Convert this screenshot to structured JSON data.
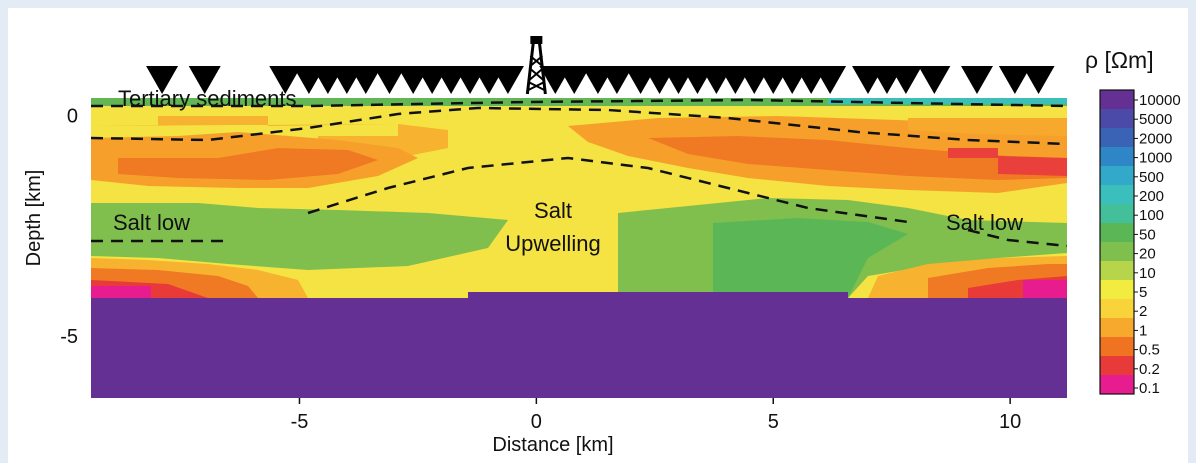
{
  "figure": {
    "x_axis": {
      "label": "Distance [km]",
      "ticks": [
        {
          "value": -5,
          "label": "-5"
        },
        {
          "value": 0,
          "label": "0"
        },
        {
          "value": 5,
          "label": "5"
        },
        {
          "value": 10,
          "label": "10"
        }
      ],
      "range_km": [
        -9.4,
        11.2
      ]
    },
    "y_axis": {
      "label": "Depth [km]",
      "ticks": [
        {
          "value": 0,
          "label": "0"
        },
        {
          "value": -5,
          "label": "-5"
        }
      ],
      "range_km": [
        0.4,
        -6.4
      ]
    },
    "colorbar": {
      "title": "ρ [Ωm]",
      "scale": "log",
      "labels": [
        "10000",
        "5000",
        "2000",
        "1000",
        "500",
        "200",
        "100",
        "50",
        "20",
        "10",
        "5",
        "2",
        "1",
        "0.5",
        "0.2",
        "0.1"
      ],
      "colors": [
        "#653093",
        "#4c4aa8",
        "#3a62b5",
        "#2f86c6",
        "#33a9c9",
        "#3bbfbc",
        "#43c09a",
        "#5bb756",
        "#7ebf4d",
        "#b6d54a",
        "#f1ec3f",
        "#f8d33a",
        "#f7a92e",
        "#f07322",
        "#e93a3a",
        "#e61c8f"
      ]
    },
    "annotations": {
      "tertiary": "Tertiary sediments",
      "salt_low_left": "Salt low",
      "salt_upwelling_1": "Salt",
      "salt_upwelling_2": "Upwelling",
      "salt_low_right": "Salt low"
    },
    "stations_km": [
      -7.9,
      -7.0,
      -5.3,
      -4.8,
      -4.4,
      -4.0,
      -3.6,
      -3.1,
      -2.6,
      -2.2,
      -1.8,
      -1.4,
      -1.0,
      -0.6,
      0.4,
      0.8,
      1.3,
      1.7,
      2.2,
      2.6,
      3.0,
      3.4,
      3.8,
      4.2,
      4.6,
      5.0,
      5.4,
      5.8,
      6.2,
      7.0,
      7.4,
      7.8,
      8.4,
      9.3,
      10.1,
      10.6
    ],
    "well_km": 0.0
  }
}
